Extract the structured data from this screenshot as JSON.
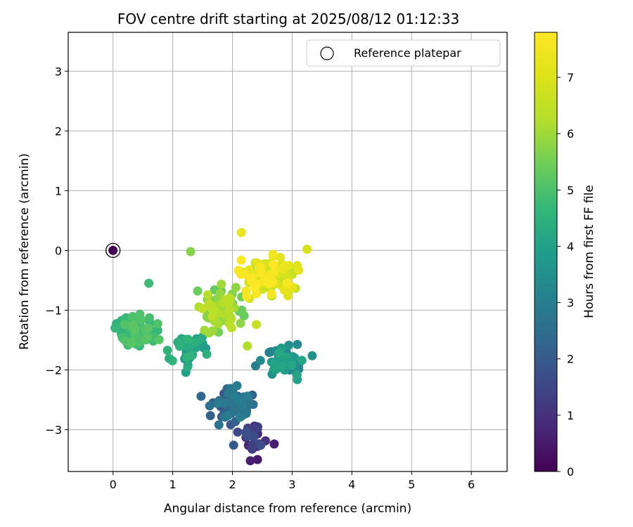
{
  "chart_data": {
    "type": "scatter",
    "title": "FOV centre drift starting at 2025/08/12 01:12:33",
    "xlabel": "Angular distance from reference (arcmin)",
    "ylabel": "Rotation from reference (arcmin)",
    "xlim": [
      -0.75,
      6.6
    ],
    "ylim": [
      -3.7,
      3.65
    ],
    "xticks": [
      0,
      1,
      2,
      3,
      4,
      5,
      6
    ],
    "yticks": [
      -3,
      -2,
      -1,
      0,
      1,
      2,
      3
    ],
    "grid": true,
    "legend": {
      "position": "upper-right",
      "entries": [
        "Reference platepar"
      ]
    },
    "reference_point": {
      "x": 0,
      "y": 0
    },
    "colorbar": {
      "label": "Hours from first FF file",
      "colormap": "viridis",
      "range": [
        0,
        7.8
      ],
      "ticks": [
        0,
        1,
        2,
        3,
        4,
        5,
        6,
        7
      ]
    },
    "clusters": [
      {
        "name": "early",
        "hours": [
          0.2,
          1.8
        ],
        "center": [
          2.3,
          -3.05
        ],
        "spread": [
          0.22,
          0.25
        ],
        "count": 25
      },
      {
        "name": "mid-low",
        "hours": [
          1.8,
          3.0
        ],
        "center": [
          2.0,
          -2.6
        ],
        "spread": [
          0.3,
          0.28
        ],
        "count": 70
      },
      {
        "name": "mid-right",
        "hours": [
          3.0,
          4.2
        ],
        "center": [
          2.9,
          -1.85
        ],
        "spread": [
          0.32,
          0.25
        ],
        "count": 55
      },
      {
        "name": "mid-left",
        "hours": [
          3.6,
          4.6
        ],
        "center": [
          1.3,
          -1.65
        ],
        "spread": [
          0.35,
          0.25
        ],
        "count": 35
      },
      {
        "name": "left",
        "hours": [
          4.4,
          5.2
        ],
        "center": [
          0.45,
          -1.4
        ],
        "spread": [
          0.35,
          0.25
        ],
        "count": 65
      },
      {
        "name": "center",
        "hours": [
          5.2,
          6.4
        ],
        "center": [
          1.75,
          -1.0
        ],
        "spread": [
          0.35,
          0.32
        ],
        "count": 75
      },
      {
        "name": "upper",
        "hours": [
          6.2,
          7.8
        ],
        "center": [
          2.6,
          -0.45
        ],
        "spread": [
          0.45,
          0.32
        ],
        "count": 90
      }
    ],
    "extra_points": [
      {
        "x": 0.6,
        "y": -0.55,
        "h": 4.8
      },
      {
        "x": 1.3,
        "y": -0.02,
        "h": 5.7
      },
      {
        "x": 2.3,
        "y": -3.52,
        "h": 0.6
      },
      {
        "x": 2.42,
        "y": -3.5,
        "h": 0.5
      },
      {
        "x": 2.7,
        "y": -3.24,
        "h": 0.6
      },
      {
        "x": 2.02,
        "y": -3.26,
        "h": 1.9
      },
      {
        "x": 2.15,
        "y": 0.3,
        "h": 7.3
      },
      {
        "x": 3.25,
        "y": 0.02,
        "h": 6.9
      },
      {
        "x": 1.22,
        "y": -2.04,
        "h": 4.0
      },
      {
        "x": 2.25,
        "y": -1.6,
        "h": 6.2
      },
      {
        "x": 2.4,
        "y": -1.24,
        "h": 6.6
      }
    ]
  }
}
